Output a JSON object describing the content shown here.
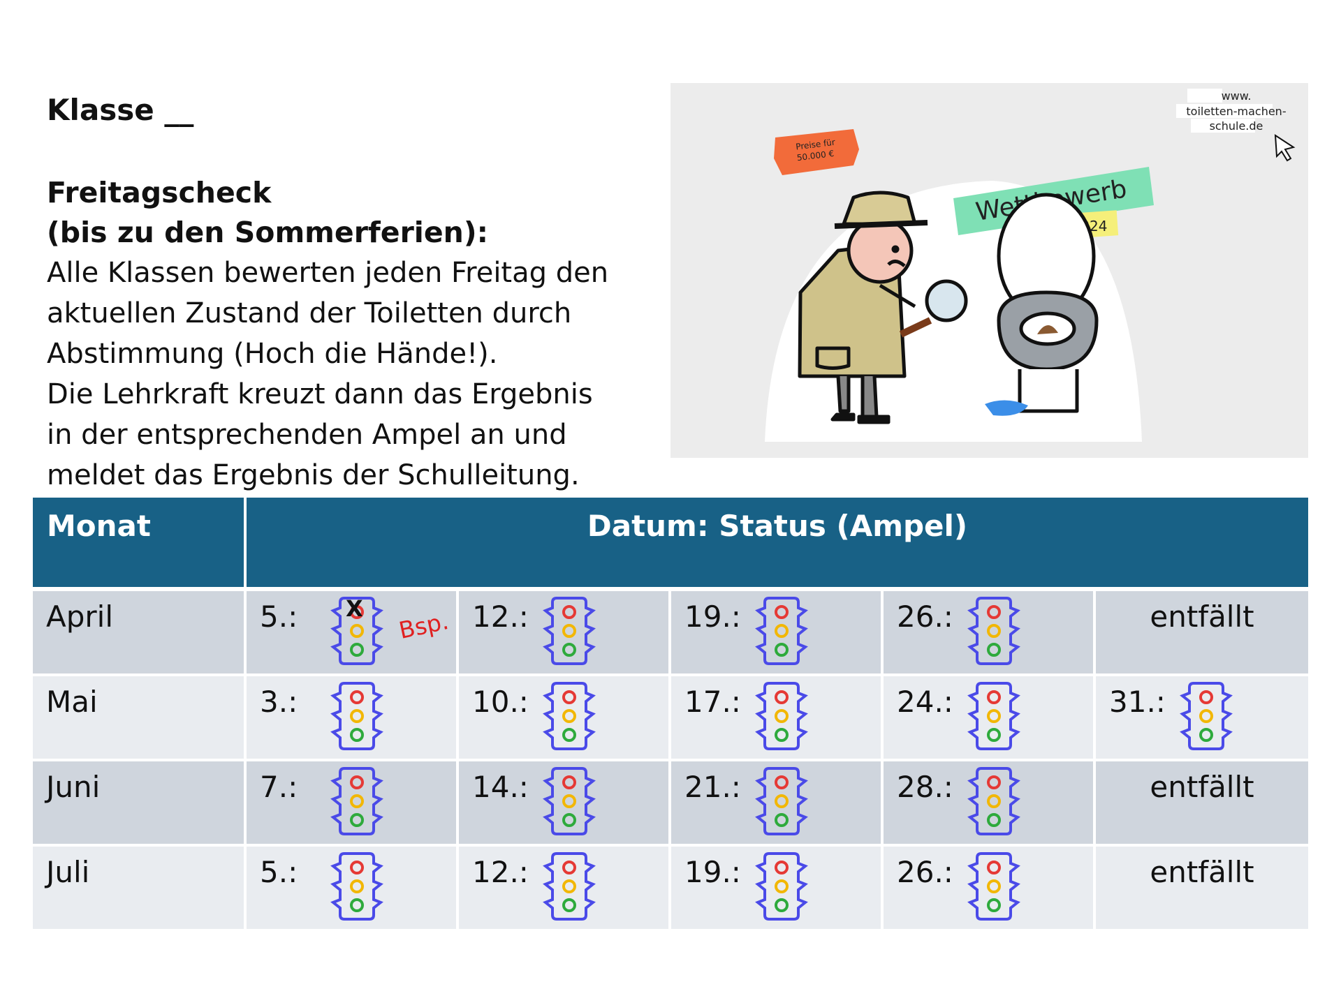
{
  "header": {
    "klasse": "Klasse __",
    "heading_line1": "Freitagscheck",
    "heading_line2": "(bis zu den Sommerferien):",
    "body_lines": [
      "Alle Klassen bewerten jeden Freitag den",
      "aktuellen Zustand der Toiletten durch",
      "Abstimmung (Hoch die Hände!).",
      "Die Lehrkraft kreuzt dann das Ergebnis",
      "in der entsprechenden Ampel an und",
      "meldet das Ergebnis der Schulleitung."
    ]
  },
  "promo": {
    "tag_line1": "Preise für",
    "tag_line2": "50.000 €",
    "url_line1": "www.",
    "url_line2": "toiletten-machen-",
    "url_line3": "schule.de",
    "banner": "Wettbewerb",
    "year": "2024"
  },
  "table": {
    "header_month": "Monat",
    "header_status": "Datum: Status (Ampel)",
    "rows": [
      {
        "month": "April",
        "cells": [
          {
            "date": "5.:",
            "mark": "X",
            "note": "Bsp."
          },
          {
            "date": "12.:"
          },
          {
            "date": "19.:"
          },
          {
            "date": "26.:"
          },
          {
            "text": "entfällt"
          }
        ]
      },
      {
        "month": "Mai",
        "cells": [
          {
            "date": "3.:"
          },
          {
            "date": "10.:"
          },
          {
            "date": "17.:"
          },
          {
            "date": "24.:"
          },
          {
            "date": "31.:"
          }
        ]
      },
      {
        "month": "Juni",
        "cells": [
          {
            "date": "7.:"
          },
          {
            "date": "14.:"
          },
          {
            "date": "21.:"
          },
          {
            "date": "28.:"
          },
          {
            "text": "entfällt"
          }
        ]
      },
      {
        "month": "Juli",
        "cells": [
          {
            "date": "5.:"
          },
          {
            "date": "12.:"
          },
          {
            "date": "19.:"
          },
          {
            "date": "26.:"
          },
          {
            "text": "entfällt"
          }
        ]
      }
    ]
  },
  "colors": {
    "header_bg": "#186186",
    "row_odd": "#cfd5dd",
    "row_even": "#e9ecf0",
    "light_outline": "#4a4ae8",
    "red": "#e53935",
    "yellow": "#f2b705",
    "green": "#2eaa3c",
    "note": "#e02020"
  }
}
